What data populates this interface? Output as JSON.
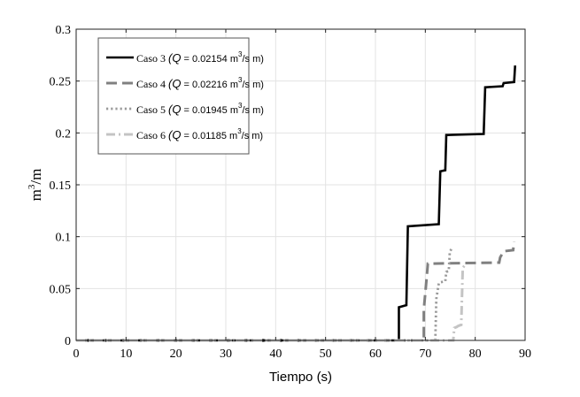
{
  "chart_data": {
    "type": "line",
    "xlabel": "Tiempo (s)",
    "ylabel_base": "m",
    "ylabel_sup": "3",
    "ylabel_tail": "/m",
    "xlim": [
      0,
      90
    ],
    "ylim": [
      0,
      0.3
    ],
    "xticks": [
      0,
      10,
      20,
      30,
      40,
      50,
      60,
      70,
      80,
      90
    ],
    "xtick_labels": [
      "0",
      "10",
      "20",
      "30",
      "40",
      "50",
      "60",
      "70",
      "80",
      "90"
    ],
    "yticks": [
      0,
      0.05,
      0.1,
      0.15,
      0.2,
      0.25,
      0.3
    ],
    "ytick_labels": [
      "0",
      "0.05",
      "0.1",
      "0.15",
      "0.2",
      "0.25",
      "0.3"
    ],
    "grid": true,
    "legend_position": "top-left",
    "series": [
      {
        "legend_prefix": "Caso 3 ",
        "q_value": "0.02154",
        "color": "#000000",
        "style": "solid",
        "x": [
          0,
          64.7,
          64.7,
          66.2,
          66.5,
          72.7,
          73.0,
          74.0,
          74.2,
          81.7,
          82.0,
          85.5,
          85.7,
          87.8,
          88.0
        ],
        "y": [
          0,
          0,
          0.032,
          0.034,
          0.11,
          0.112,
          0.163,
          0.164,
          0.198,
          0.199,
          0.244,
          0.245,
          0.248,
          0.249,
          0.265
        ]
      },
      {
        "legend_prefix": "Caso 4 ",
        "q_value": "0.02216",
        "color": "#808080",
        "style": "dashed",
        "x": [
          0,
          69.7,
          69.7,
          70.3,
          70.5,
          84.8,
          85.0,
          85.6,
          85.8,
          87.6,
          87.8
        ],
        "y": [
          0,
          0,
          0.03,
          0.062,
          0.074,
          0.075,
          0.08,
          0.085,
          0.086,
          0.087,
          0.095
        ]
      },
      {
        "legend_prefix": "Caso 5 ",
        "q_value": "0.01945",
        "color": "#9a9a9a",
        "style": "dotted",
        "x": [
          0,
          72.0,
          72.2,
          72.7,
          73.0,
          74.0,
          74.2,
          74.7,
          74.9,
          75.2
        ],
        "y": [
          0,
          0,
          0.04,
          0.055,
          0.056,
          0.057,
          0.066,
          0.067,
          0.085,
          0.088
        ]
      },
      {
        "legend_prefix": "Caso 6 ",
        "q_value": "0.01185",
        "color": "#c4c4c4",
        "style": "dashdot",
        "x": [
          0,
          75.6,
          75.8,
          76.3,
          76.6,
          77.2,
          77.5,
          78.2
        ],
        "y": [
          0,
          0,
          0.012,
          0.013,
          0.014,
          0.015,
          0.07,
          0.074
        ]
      }
    ],
    "legend_q": "Q",
    "legend_eq": " = ",
    "legend_unit_m": "m",
    "legend_unit_sup": "3",
    "legend_unit_tail": "/s m)",
    "legend_open": "(",
    "zero_marker_color": "#000000"
  }
}
